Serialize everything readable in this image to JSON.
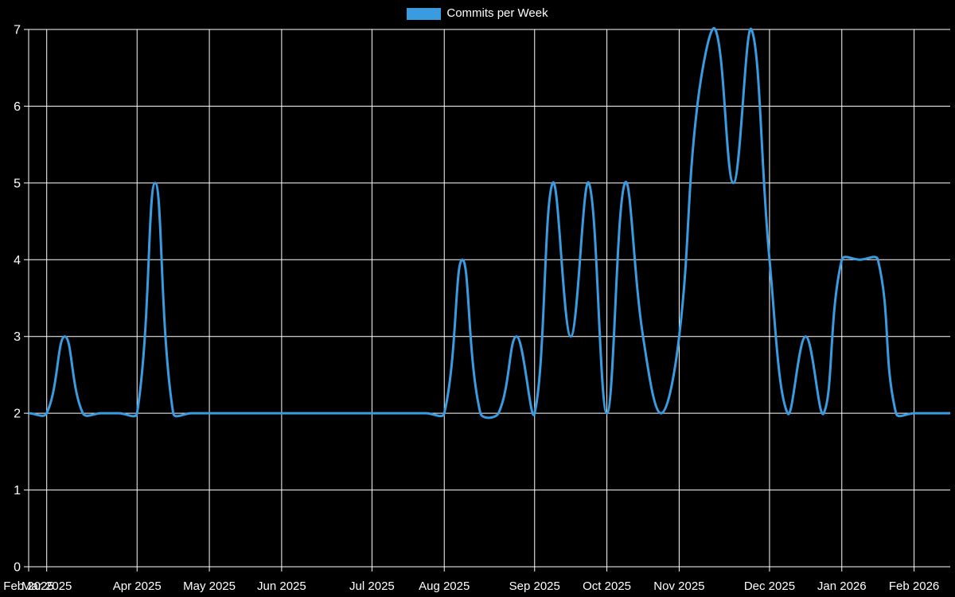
{
  "legend": {
    "label": "Commits per Week"
  },
  "colors": {
    "background": "#000000",
    "line": "#3a9be0",
    "grid": "#ffffff",
    "text": "#ffffff"
  },
  "chart_data": {
    "type": "line",
    "title": "",
    "xlabel": "",
    "ylabel": "",
    "ylim": [
      0,
      7
    ],
    "y_ticks": [
      0,
      1,
      2,
      3,
      4,
      5,
      6,
      7
    ],
    "grid": true,
    "legend_position": "top-center",
    "smoothing": "bezier",
    "x": [
      "Feb 23 2025",
      "Mar 2 2025",
      "Mar 9 2025",
      "Mar 16 2025",
      "Mar 23 2025",
      "Mar 30 2025",
      "Apr 6 2025",
      "Apr 13 2025",
      "Apr 20 2025",
      "Apr 27 2025",
      "May 4 2025",
      "May 11 2025",
      "May 18 2025",
      "May 25 2025",
      "Jun 1 2025",
      "Jun 8 2025",
      "Jun 15 2025",
      "Jun 22 2025",
      "Jun 29 2025",
      "Jul 6 2025",
      "Jul 13 2025",
      "Jul 20 2025",
      "Jul 27 2025",
      "Aug 3 2025",
      "Aug 10 2025",
      "Aug 17 2025",
      "Aug 24 2025",
      "Aug 31 2025",
      "Sep 7 2025",
      "Sep 14 2025",
      "Sep 21 2025",
      "Sep 28 2025",
      "Oct 5 2025",
      "Oct 12 2025",
      "Oct 19 2025",
      "Oct 26 2025",
      "Nov 2 2025",
      "Nov 9 2025",
      "Nov 16 2025",
      "Nov 23 2025",
      "Nov 30 2025",
      "Dec 7 2025",
      "Dec 14 2025",
      "Dec 21 2025",
      "Dec 28 2025",
      "Jan 4 2026",
      "Jan 11 2026",
      "Jan 18 2026",
      "Jan 25 2026",
      "Feb 1 2026",
      "Feb 8 2026",
      "Feb 15 2026"
    ],
    "series": [
      {
        "name": "Commits per Week",
        "color": "#3a9be0",
        "values": [
          2,
          2,
          3,
          2,
          2,
          2,
          2,
          5,
          2,
          2,
          2,
          2,
          2,
          2,
          2,
          2,
          2,
          2,
          2,
          2,
          2,
          2,
          2,
          2,
          4,
          2,
          2,
          3,
          2,
          5,
          3,
          5,
          2,
          5,
          3,
          2,
          3,
          6,
          7,
          5,
          7,
          4,
          2,
          3,
          2,
          4,
          4,
          4,
          2,
          2,
          2,
          2
        ]
      }
    ],
    "x_tick_labels": [
      {
        "label": "Feb 2025",
        "week_index": 0
      },
      {
        "label": "Mar 2025",
        "week_index": 1
      },
      {
        "label": "Apr 2025",
        "week_index": 6
      },
      {
        "label": "May 2025",
        "week_index": 10
      },
      {
        "label": "Jun 2025",
        "week_index": 14
      },
      {
        "label": "Jul 2025",
        "week_index": 19
      },
      {
        "label": "Aug 2025",
        "week_index": 23
      },
      {
        "label": "Sep 2025",
        "week_index": 28
      },
      {
        "label": "Oct 2025",
        "week_index": 32
      },
      {
        "label": "Nov 2025",
        "week_index": 36
      },
      {
        "label": "Dec 2025",
        "week_index": 41
      },
      {
        "label": "Jan 2026",
        "week_index": 45
      },
      {
        "label": "Feb 2026",
        "week_index": 49
      }
    ]
  }
}
